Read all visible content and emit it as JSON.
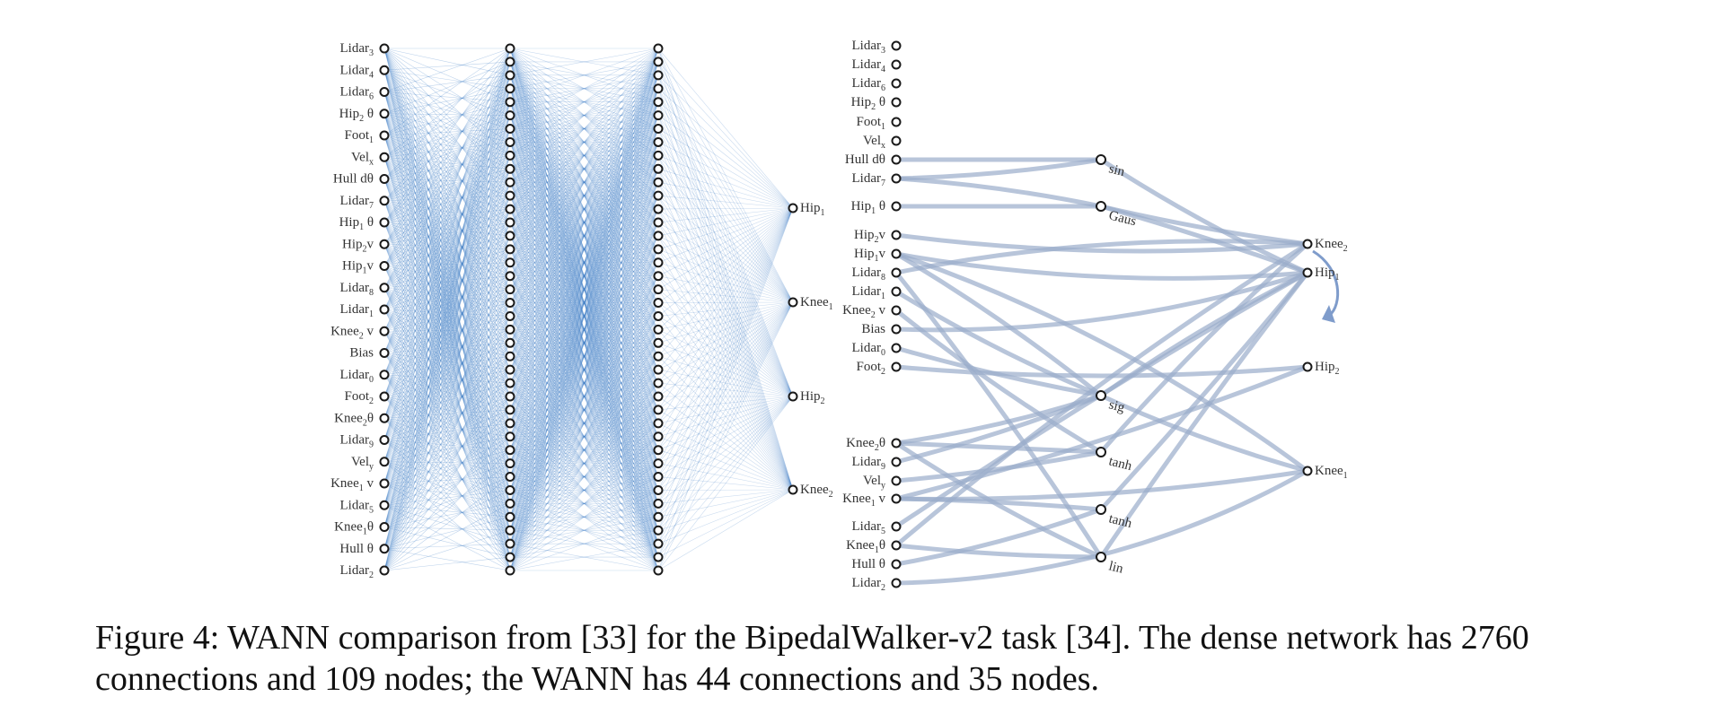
{
  "dense": {
    "inputs": [
      {
        "b": "Lidar",
        "s": "3",
        "a": ""
      },
      {
        "b": "Lidar",
        "s": "4",
        "a": ""
      },
      {
        "b": "Lidar",
        "s": "6",
        "a": ""
      },
      {
        "b": "Hip",
        "s": "2",
        "a": " θ"
      },
      {
        "b": "Foot",
        "s": "1",
        "a": ""
      },
      {
        "b": "Vel",
        "s": "x",
        "a": ""
      },
      {
        "b": "Hull dθ",
        "s": "",
        "a": ""
      },
      {
        "b": "Lidar",
        "s": "7",
        "a": ""
      },
      {
        "b": "Hip",
        "s": "1",
        "a": " θ"
      },
      {
        "b": "Hip",
        "s": "2",
        "a": "v"
      },
      {
        "b": "Hip",
        "s": "1",
        "a": "v"
      },
      {
        "b": "Lidar",
        "s": "8",
        "a": ""
      },
      {
        "b": "Lidar",
        "s": "1",
        "a": ""
      },
      {
        "b": "Knee",
        "s": "2",
        "a": " v"
      },
      {
        "b": "Bias",
        "s": "",
        "a": ""
      },
      {
        "b": "Lidar",
        "s": "0",
        "a": ""
      },
      {
        "b": "Foot",
        "s": "2",
        "a": ""
      },
      {
        "b": "Knee",
        "s": "2",
        "a": "θ"
      },
      {
        "b": "Lidar",
        "s": "9",
        "a": ""
      },
      {
        "b": "Vel",
        "s": "y",
        "a": ""
      },
      {
        "b": "Knee",
        "s": "1",
        "a": " v"
      },
      {
        "b": "Lidar",
        "s": "5",
        "a": ""
      },
      {
        "b": "Knee",
        "s": "1",
        "a": "θ"
      },
      {
        "b": "Hull θ",
        "s": "",
        "a": ""
      },
      {
        "b": "Lidar",
        "s": "2",
        "a": ""
      }
    ],
    "hidden_layer_sizes": [
      40,
      40
    ],
    "outputs": [
      {
        "b": "Hip",
        "s": "1",
        "a": ""
      },
      {
        "b": "Knee",
        "s": "1",
        "a": ""
      },
      {
        "b": "Hip",
        "s": "2",
        "a": ""
      },
      {
        "b": "Knee",
        "s": "2",
        "a": ""
      }
    ]
  },
  "wann": {
    "inputs": [
      {
        "b": "Lidar",
        "s": "3",
        "a": ""
      },
      {
        "b": "Lidar",
        "s": "4",
        "a": ""
      },
      {
        "b": "Lidar",
        "s": "6",
        "a": ""
      },
      {
        "b": "Hip",
        "s": "2",
        "a": " θ"
      },
      {
        "b": "Foot",
        "s": "1",
        "a": ""
      },
      {
        "b": "Vel",
        "s": "x",
        "a": ""
      },
      {
        "b": "Hull dθ",
        "s": "",
        "a": ""
      },
      {
        "b": "Lidar",
        "s": "7",
        "a": ""
      },
      {
        "b": "Hip",
        "s": "1",
        "a": " θ"
      },
      {
        "b": "Hip",
        "s": "2",
        "a": "v"
      },
      {
        "b": "Hip",
        "s": "1",
        "a": "v"
      },
      {
        "b": "Lidar",
        "s": "8",
        "a": ""
      },
      {
        "b": "Lidar",
        "s": "1",
        "a": ""
      },
      {
        "b": "Knee",
        "s": "2",
        "a": " v"
      },
      {
        "b": "Bias",
        "s": "",
        "a": ""
      },
      {
        "b": "Lidar",
        "s": "0",
        "a": ""
      },
      {
        "b": "Foot",
        "s": "2",
        "a": ""
      },
      {
        "b": "Knee",
        "s": "2",
        "a": "θ"
      },
      {
        "b": "Lidar",
        "s": "9",
        "a": ""
      },
      {
        "b": "Vel",
        "s": "y",
        "a": ""
      },
      {
        "b": "Knee",
        "s": "1",
        "a": " v"
      },
      {
        "b": "Lidar",
        "s": "5",
        "a": ""
      },
      {
        "b": "Knee",
        "s": "1",
        "a": "θ"
      },
      {
        "b": "Hull θ",
        "s": "",
        "a": ""
      },
      {
        "b": "Lidar",
        "s": "2",
        "a": ""
      }
    ],
    "hidden": [
      {
        "fn": "sin",
        "color": "#e3b25a"
      },
      {
        "fn": "Gaus",
        "color": "#e3a36b"
      },
      {
        "fn": "sig",
        "color": "#4d5b6e"
      },
      {
        "fn": "tanh",
        "color": "#000000"
      },
      {
        "fn": "tanh",
        "color": "#000000"
      },
      {
        "fn": "lin",
        "color": "#ffffff"
      }
    ],
    "outputs": [
      {
        "b": "Knee",
        "s": "2",
        "a": ""
      },
      {
        "b": "Hip",
        "s": "1",
        "a": ""
      },
      {
        "b": "Hip",
        "s": "2",
        "a": ""
      },
      {
        "b": "Knee",
        "s": "1",
        "a": ""
      }
    ]
  },
  "colors": {
    "dense_edge": "#3f7fc7",
    "wann_edge": "#9aaccb",
    "arrow": "#7f9ccb"
  },
  "caption": "Figure 4: WANN comparison from [33] for the BipedalWalker-v2 task [34]. The dense network has 2760 connections and 109 nodes; the WANN has 44 connections and 35 nodes."
}
